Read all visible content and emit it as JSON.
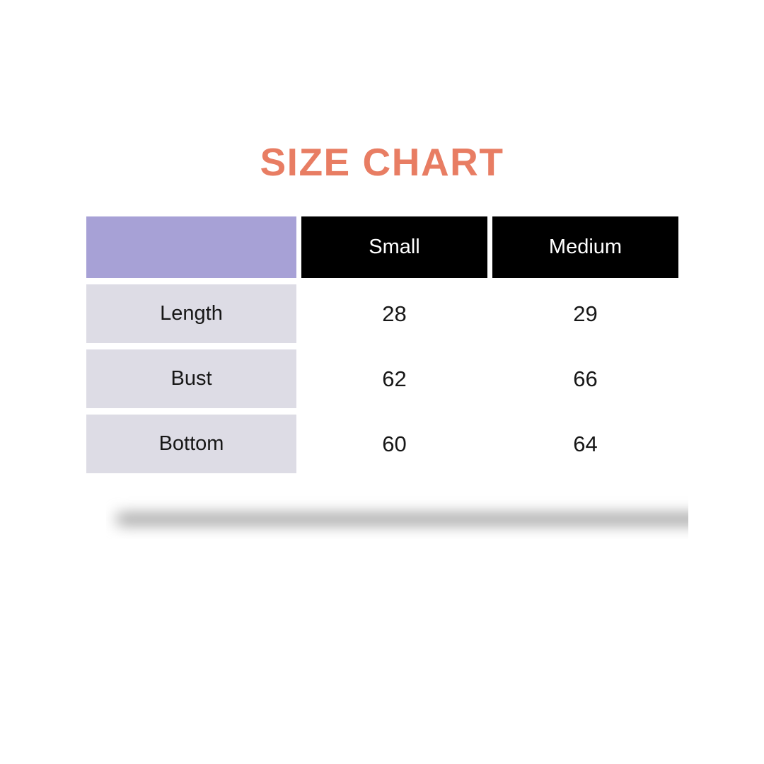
{
  "page": {
    "title": "SIZE CHART",
    "background_color": "#ffffff",
    "title_color": "#e87d63"
  },
  "table": {
    "corner_color": "#a7a1d6",
    "header_bg_color": "#000000",
    "header_text_color": "#ffffff",
    "label_bg_color": "#dddce5",
    "text_color": "#171717",
    "columns": [
      "Small",
      "Medium"
    ],
    "rows": [
      {
        "label": "Length",
        "values": [
          "28",
          "29"
        ]
      },
      {
        "label": "Bust",
        "values": [
          "62",
          "66"
        ]
      },
      {
        "label": "Bottom",
        "values": [
          "60",
          "64"
        ]
      }
    ]
  },
  "chart_data": {
    "type": "table",
    "title": "SIZE CHART",
    "columns": [
      "",
      "Small",
      "Medium"
    ],
    "rows": [
      [
        "Length",
        28,
        29
      ],
      [
        "Bust",
        62,
        66
      ],
      [
        "Bottom",
        60,
        64
      ]
    ],
    "layout": {
      "header_style": "black cells with white text, empty purple corner cell",
      "row_label_style": "light gray-lavender cells, centered text",
      "value_style": "plain white background, centered numbers",
      "footer": "soft gray blurred shadow bar under table"
    }
  }
}
